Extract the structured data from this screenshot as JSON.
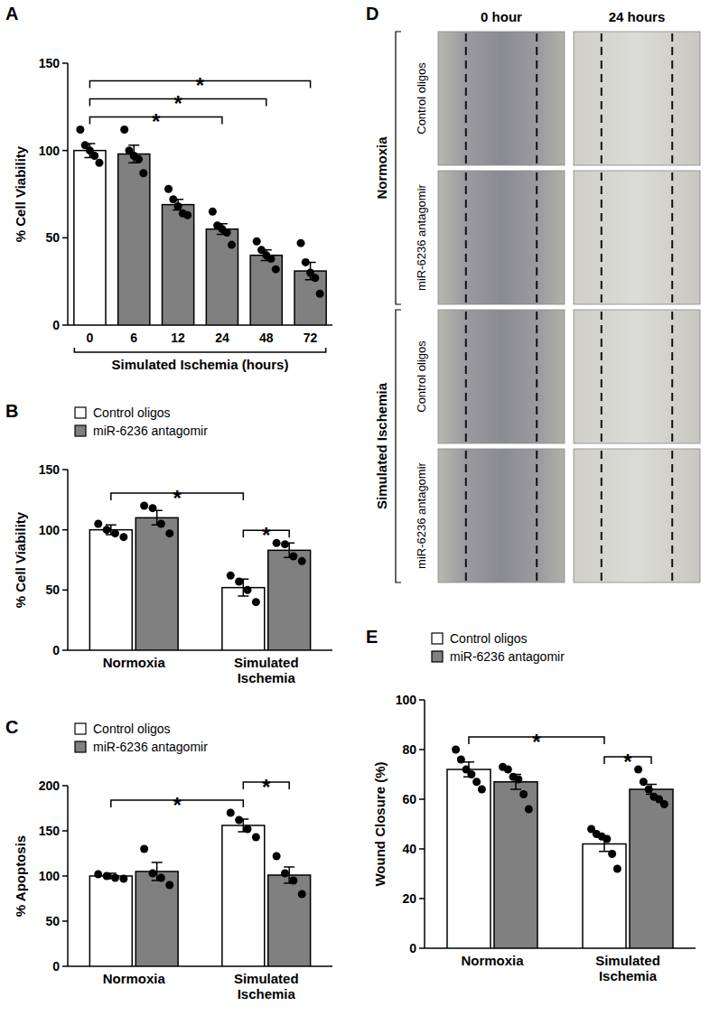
{
  "chart_data": [
    {
      "panel": "A",
      "type": "bar",
      "categories": [
        "0",
        "6",
        "12",
        "24",
        "48",
        "72"
      ],
      "values": [
        100,
        98,
        69,
        55,
        40,
        31
      ],
      "errors": [
        4,
        5,
        3,
        3,
        3,
        5
      ],
      "points": [
        [
          112,
          103,
          100,
          97,
          93
        ],
        [
          112,
          100,
          97,
          95,
          87
        ],
        [
          78,
          72,
          68,
          64,
          63
        ],
        [
          65,
          57,
          55,
          53,
          46
        ],
        [
          48,
          43,
          40,
          38,
          32
        ],
        [
          47,
          36,
          30,
          27,
          18
        ]
      ],
      "colors": [
        "#ffffff",
        "#808080",
        "#808080",
        "#808080",
        "#808080",
        "#808080"
      ],
      "x_label": "Simulated Ischemia (hours)",
      "y_label": "% Cell Viability",
      "ylim": [
        0,
        150
      ],
      "yticks": [
        0,
        50,
        100,
        150
      ],
      "significance": [
        {
          "from": 0,
          "to": 3,
          "label": "*"
        },
        {
          "from": 0,
          "to": 4,
          "label": "*"
        },
        {
          "from": 0,
          "to": 5,
          "label": "*"
        }
      ]
    },
    {
      "panel": "B",
      "type": "bar",
      "categories": [
        "Normoxia",
        "Simulated Ischemia"
      ],
      "series": [
        {
          "name": "Control oligos",
          "color": "#ffffff",
          "values": [
            100,
            52
          ],
          "errors": [
            4,
            7
          ],
          "points": [
            [
              105,
              100,
              97,
              94
            ],
            [
              62,
              57,
              50,
              40
            ]
          ]
        },
        {
          "name": "miR-6236 antagomir",
          "color": "#808080",
          "values": [
            110,
            83
          ],
          "errors": [
            6,
            6
          ],
          "points": [
            [
              120,
              118,
              105,
              97
            ],
            [
              89,
              88,
              78,
              74
            ]
          ]
        }
      ],
      "legend": "top-left",
      "y_label": "% Cell Viability",
      "ylim": [
        0,
        150
      ],
      "yticks": [
        0,
        50,
        100,
        150
      ],
      "significance": [
        {
          "from": [
            0,
            0
          ],
          "to": [
            0,
            1
          ],
          "label": "*"
        },
        {
          "from": [
            0,
            1
          ],
          "to": [
            1,
            1
          ],
          "label": "*"
        }
      ]
    },
    {
      "panel": "C",
      "type": "bar",
      "categories": [
        "Normoxia",
        "Simulated Ischemia"
      ],
      "series": [
        {
          "name": "Control oligos",
          "color": "#ffffff",
          "values": [
            100,
            156
          ],
          "errors": [
            3,
            7
          ],
          "points": [
            [
              102,
              100,
              98,
              97
            ],
            [
              170,
              162,
              152,
              143
            ]
          ]
        },
        {
          "name": "miR-6236 antagomir",
          "color": "#808080",
          "values": [
            105,
            101
          ],
          "errors": [
            10,
            9
          ],
          "points": [
            [
              130,
              103,
              98,
              90
            ],
            [
              122,
              103,
              95,
              80
            ]
          ]
        }
      ],
      "legend": "top-left",
      "y_label": "% Apoptosis",
      "ylim": [
        0,
        200
      ],
      "yticks": [
        0,
        50,
        100,
        150,
        200
      ],
      "significance": [
        {
          "from": [
            0,
            0
          ],
          "to": [
            0,
            1
          ],
          "label": "*"
        },
        {
          "from": [
            0,
            1
          ],
          "to": [
            1,
            1
          ],
          "label": "*"
        }
      ]
    },
    {
      "panel": "E",
      "type": "bar",
      "categories": [
        "Normoxia",
        "Simulated Ischemia"
      ],
      "series": [
        {
          "name": "Control oligos",
          "color": "#ffffff",
          "values": [
            72,
            42
          ],
          "errors": [
            3,
            3
          ],
          "points": [
            [
              80,
              76,
              72,
              70,
              67,
              64
            ],
            [
              48,
              46,
              45,
              44,
              38,
              32
            ]
          ]
        },
        {
          "name": "miR-6236 antagomir",
          "color": "#808080",
          "values": [
            67,
            64
          ],
          "errors": [
            3,
            2
          ],
          "points": [
            [
              73,
              72,
              69,
              68,
              62,
              56
            ],
            [
              72,
              67,
              64,
              61,
              60,
              58
            ]
          ]
        }
      ],
      "legend": "top-left",
      "y_label": "Wound Closure (%)",
      "ylim": [
        0,
        100
      ],
      "yticks": [
        0,
        20,
        40,
        60,
        80,
        100
      ],
      "significance": [
        {
          "from": [
            0,
            0
          ],
          "to": [
            0,
            1
          ],
          "label": "*"
        },
        {
          "from": [
            0,
            1
          ],
          "to": [
            1,
            1
          ],
          "label": "*"
        }
      ]
    }
  ],
  "image_panel": {
    "panel": "D",
    "columns": [
      "0 hour",
      "24 hours"
    ],
    "groups": [
      {
        "label": "Normoxia",
        "rows": [
          "Control oligos",
          "miR-6236 antagomir"
        ]
      },
      {
        "label": "Simulated Ischemia",
        "rows": [
          "Control oligos",
          "miR-6236 antagomir"
        ]
      }
    ]
  }
}
